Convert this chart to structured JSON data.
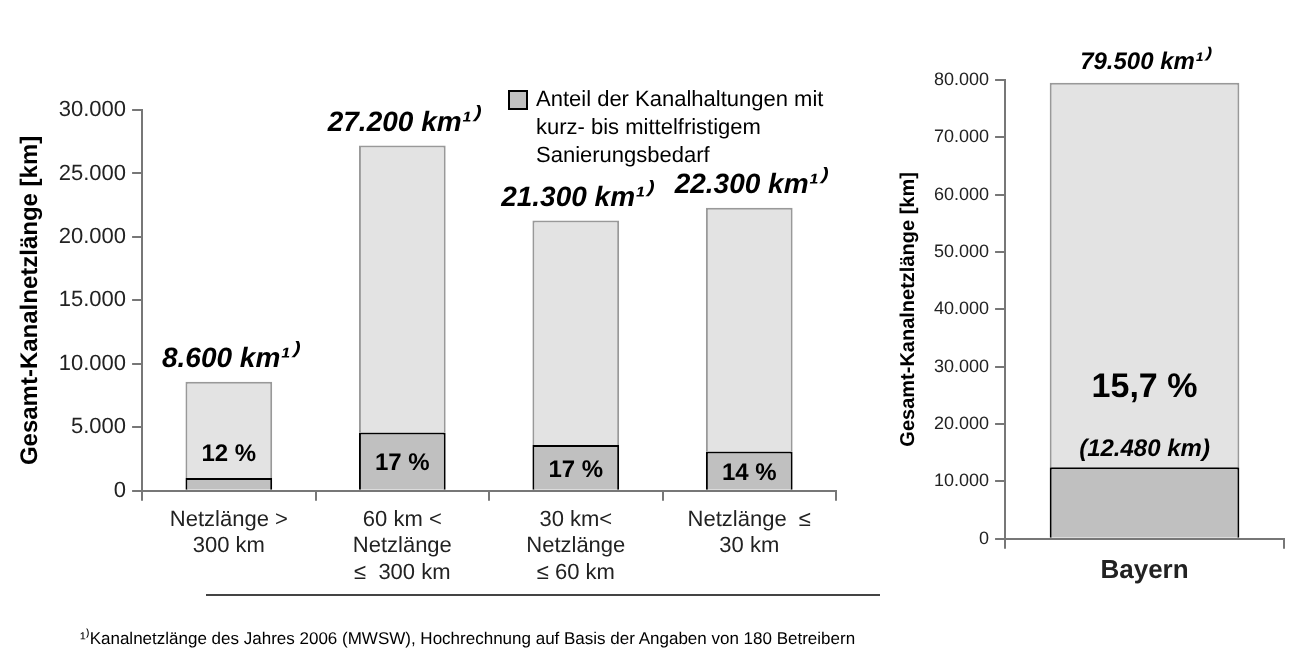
{
  "chart_data": [
    {
      "type": "bar",
      "stacked": true,
      "ylabel": "Gesamt-Kanalnetzlänge [km]",
      "categories": [
        "Netzlänge >\n300 km",
        "60 km <\nNetzlänge\n≤  300 km",
        "30 km<\nNetzlänge\n≤ 60 km",
        "Netzlänge  ≤\n30 km"
      ],
      "series": [
        {
          "name": "Anteil der Kanalhaltungen mit kurz- bis mittelfristigem Sanierungsbedarf",
          "color": "#c0c0c0",
          "values": [
            1000,
            4600,
            3600,
            3100
          ]
        },
        {
          "color": "#e3e3e3",
          "values": [
            7600,
            22600,
            17700,
            19200
          ]
        }
      ],
      "totals": [
        "8.600 km¹⁾",
        "27.200 km¹⁾",
        "21.300 km¹⁾",
        "22.300 km¹⁾"
      ],
      "ylim": [
        0,
        30000
      ],
      "yticks": [
        {
          "value": 0,
          "label": "0"
        },
        {
          "value": 5000,
          "label": "5.000"
        },
        {
          "value": 10000,
          "label": "10.000"
        },
        {
          "value": 15000,
          "label": "15.000"
        },
        {
          "value": 20000,
          "label": "20.000"
        },
        {
          "value": 25000,
          "label": "25.000"
        },
        {
          "value": 30000,
          "label": "30.000"
        }
      ],
      "legend": "top right",
      "annotations": [
        {
          "text": "12 %",
          "x": "Netzlänge >\n300 km",
          "y": 1000
        },
        {
          "text": "17 %",
          "x": "60 km <\nNetzlänge\n≤  300 km",
          "y": 4600
        },
        {
          "text": "17 %",
          "x": "30 km<\nNetzlänge\n≤ 60 km",
          "y": 3600
        },
        {
          "text": "14 %",
          "x": "Netzlänge  ≤\n30 km",
          "y": 3100
        },
        "¹⁾Kanalnetzlänge des Jahres 2006 (MWSW), Hochrechnung auf Basis der Angaben von 180 Betreibern"
      ]
    },
    {
      "type": "bar",
      "stacked": true,
      "ylabel": "Gesamt-Kanalnetzlänge [km]",
      "categories": [
        "Bayern"
      ],
      "series": [
        {
          "color": "#c0c0c0",
          "values": [
            12480
          ],
          "value_labels": [
            "(12.480 km)"
          ]
        },
        {
          "color": "#e3e3e3",
          "values": [
            67020
          ]
        }
      ],
      "totals": [
        "79.500 km¹⁾"
      ],
      "ylim": [
        0,
        80000
      ],
      "yticks": [
        {
          "value": 0,
          "label": "0"
        },
        {
          "value": 10000,
          "label": "10.000"
        },
        {
          "value": 20000,
          "label": "20.000"
        },
        {
          "value": 30000,
          "label": "30.000"
        },
        {
          "value": 40000,
          "label": "40.000"
        },
        {
          "value": 50000,
          "label": "50.000"
        },
        {
          "value": 60000,
          "label": "60.000"
        },
        {
          "value": 70000,
          "label": "70.000"
        },
        {
          "value": 80000,
          "label": "80.000"
        }
      ],
      "annotations": [
        {
          "text": "15,7 %",
          "x": "Bayern",
          "y": 12480
        }
      ]
    }
  ]
}
